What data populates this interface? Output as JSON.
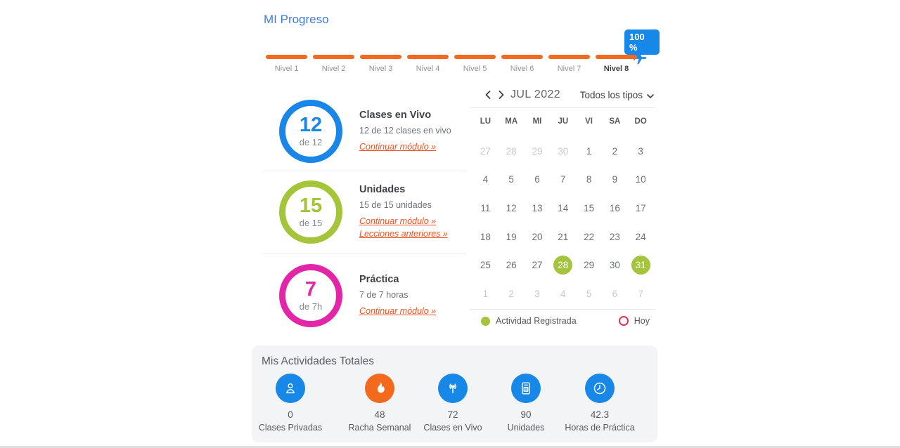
{
  "page": {
    "title": "MI Progreso"
  },
  "levels": {
    "badge": "100 %",
    "bar_color": "#f3691e",
    "badge_color": "#1787e8",
    "items": [
      {
        "label": "Nivel 1",
        "active": false
      },
      {
        "label": "Nivel 2",
        "active": false
      },
      {
        "label": "Nivel 3",
        "active": false
      },
      {
        "label": "Nivel 4",
        "active": false
      },
      {
        "label": "Nivel 5",
        "active": false
      },
      {
        "label": "Nivel 6",
        "active": false
      },
      {
        "label": "Nivel 7",
        "active": false
      },
      {
        "label": "Nivel 8",
        "active": true
      }
    ]
  },
  "modules": [
    {
      "value": "12",
      "sub": "de 12",
      "title": "Clases en Vivo",
      "desc": "12 de 12 clases en vivo",
      "links": [
        "Continuar módulo »"
      ],
      "color": "#1a86e8"
    },
    {
      "value": "15",
      "sub": "de 15",
      "title": "Unidades",
      "desc": "15 de 15 unidades",
      "links": [
        "Continuar módulo »",
        "Lecciones anteriores »"
      ],
      "color": "#a4c43a"
    },
    {
      "value": "7",
      "sub": "de 7h",
      "title": "Práctica",
      "desc": "7 de 7 horas",
      "links": [
        "Continuar módulo »"
      ],
      "color": "#e326a8"
    }
  ],
  "calendar": {
    "month": "JUL 2022",
    "filter": "Todos los tipos",
    "day_headers": [
      "LU",
      "MA",
      "MI",
      "JU",
      "VI",
      "SA",
      "DO"
    ],
    "weeks": [
      [
        {
          "d": "27",
          "state": "muted"
        },
        {
          "d": "28",
          "state": "muted"
        },
        {
          "d": "29",
          "state": "muted"
        },
        {
          "d": "30",
          "state": "muted"
        },
        {
          "d": "1",
          "state": "normal"
        },
        {
          "d": "2",
          "state": "normal"
        },
        {
          "d": "3",
          "state": "normal"
        }
      ],
      [
        {
          "d": "4",
          "state": "normal"
        },
        {
          "d": "5",
          "state": "normal"
        },
        {
          "d": "6",
          "state": "normal"
        },
        {
          "d": "7",
          "state": "normal"
        },
        {
          "d": "8",
          "state": "normal"
        },
        {
          "d": "9",
          "state": "normal"
        },
        {
          "d": "10",
          "state": "normal"
        }
      ],
      [
        {
          "d": "11",
          "state": "normal"
        },
        {
          "d": "12",
          "state": "normal"
        },
        {
          "d": "13",
          "state": "normal"
        },
        {
          "d": "14",
          "state": "normal"
        },
        {
          "d": "15",
          "state": "normal"
        },
        {
          "d": "16",
          "state": "normal"
        },
        {
          "d": "17",
          "state": "normal"
        }
      ],
      [
        {
          "d": "18",
          "state": "normal"
        },
        {
          "d": "19",
          "state": "normal"
        },
        {
          "d": "20",
          "state": "normal"
        },
        {
          "d": "21",
          "state": "normal"
        },
        {
          "d": "22",
          "state": "normal"
        },
        {
          "d": "23",
          "state": "normal"
        },
        {
          "d": "24",
          "state": "normal"
        }
      ],
      [
        {
          "d": "25",
          "state": "normal"
        },
        {
          "d": "26",
          "state": "normal"
        },
        {
          "d": "27",
          "state": "normal"
        },
        {
          "d": "28",
          "state": "active"
        },
        {
          "d": "29",
          "state": "normal"
        },
        {
          "d": "30",
          "state": "normal"
        },
        {
          "d": "31",
          "state": "active"
        }
      ],
      [
        {
          "d": "1",
          "state": "muted"
        },
        {
          "d": "2",
          "state": "muted"
        },
        {
          "d": "3",
          "state": "muted"
        },
        {
          "d": "4",
          "state": "muted"
        },
        {
          "d": "5",
          "state": "muted"
        },
        {
          "d": "6",
          "state": "muted"
        },
        {
          "d": "7",
          "state": "muted"
        }
      ]
    ],
    "legend": [
      {
        "label": "Actividad Registrada",
        "marker": "activity-dot",
        "color": "#a3c43c"
      },
      {
        "label": "Hoy",
        "marker": "today-ring",
        "color": "#e8304f"
      }
    ]
  },
  "totals": {
    "title": "Mis Actividades Totales",
    "stats": [
      {
        "value": "48",
        "label": "Racha Semanal",
        "icon": "flame-icon",
        "color": "#f3691e"
      },
      {
        "value": "72",
        "label": "Clases en Vivo",
        "icon": "broadcast-icon",
        "color": "#1787e8"
      },
      {
        "value": "90",
        "label": "Unidades",
        "icon": "book-icon",
        "color": "#1787e8"
      },
      {
        "value": "42.3",
        "label": "Horas de Práctica",
        "icon": "clock-icon",
        "color": "#1787e8"
      },
      {
        "value": "0",
        "label": "Clases Privadas",
        "icon": "person-icon",
        "color": "#1787e8"
      }
    ]
  }
}
